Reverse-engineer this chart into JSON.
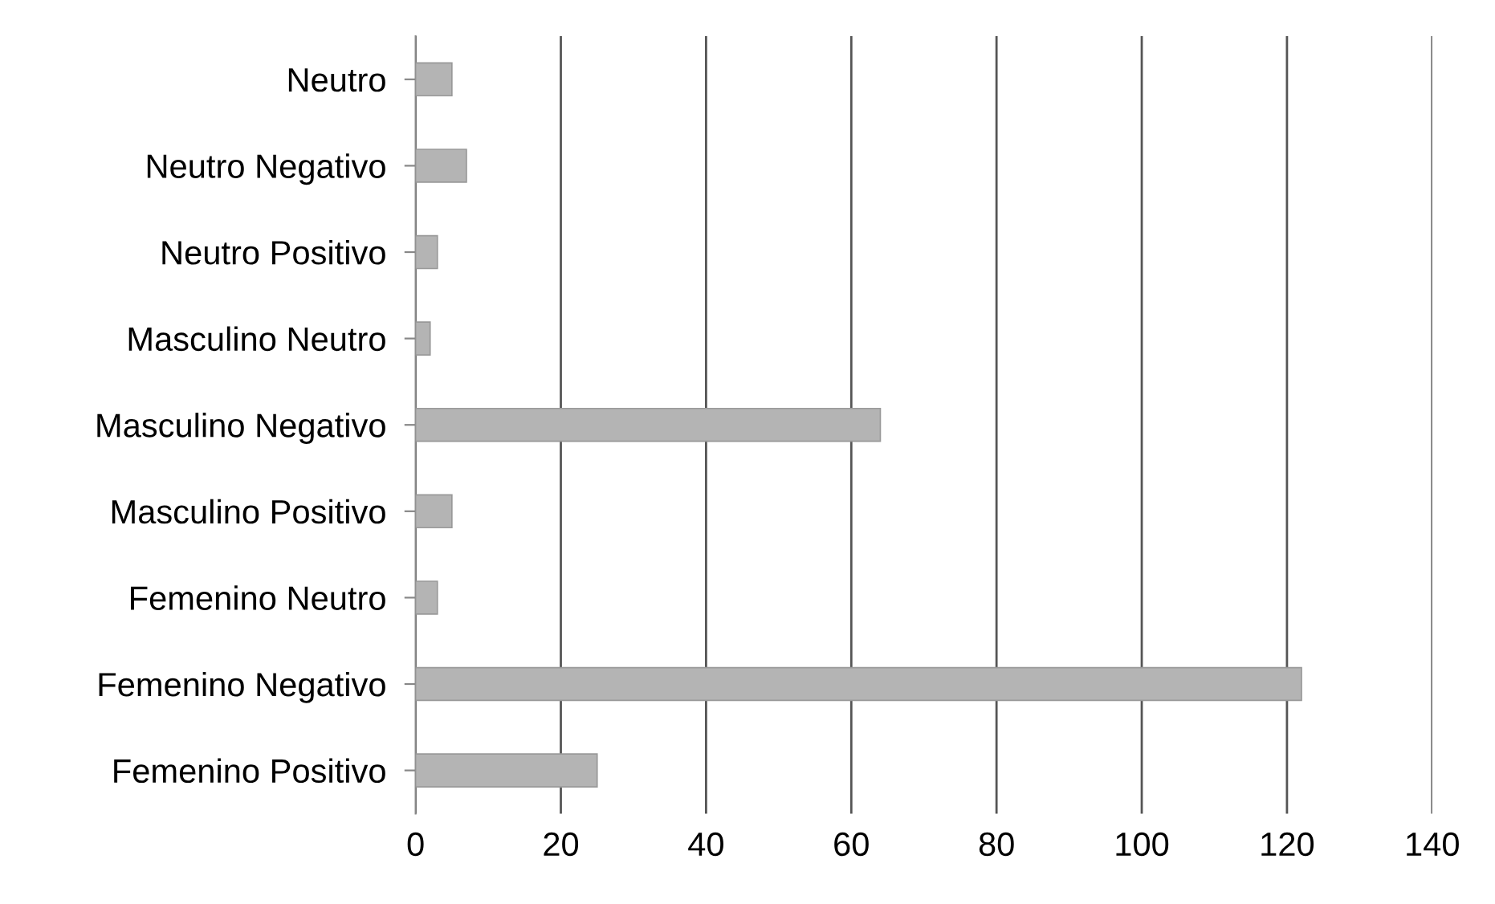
{
  "chart_data": {
    "type": "bar",
    "orientation": "horizontal",
    "categories": [
      "Neutro",
      "Neutro Negativo",
      "Neutro Positivo",
      "Masculino Neutro",
      "Masculino Negativo",
      "Masculino Positivo",
      "Femenino Neutro",
      "Femenino Negativo",
      "Femenino Positivo"
    ],
    "values": [
      5,
      7,
      3,
      2,
      64,
      5,
      3,
      122,
      25
    ],
    "color": "#b4b4b4",
    "xlim": [
      0,
      140
    ],
    "xticks": [
      0,
      20,
      40,
      60,
      80,
      100,
      120,
      140
    ],
    "grid": "x"
  }
}
